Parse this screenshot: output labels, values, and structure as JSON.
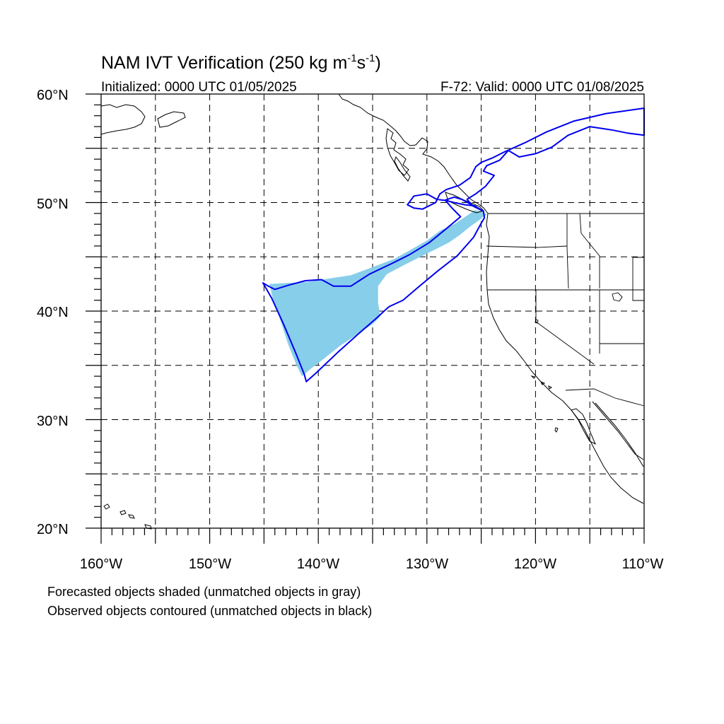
{
  "title": {
    "main": "NAM IVT Verification (250 kg m",
    "exp1": "-1",
    "mid": "s",
    "exp2": "-1",
    "close": ")"
  },
  "subtitle_left": "Initialized: 0000 UTC 01/05/2025",
  "subtitle_right": "F-72: Valid: 0000 UTC 01/08/2025",
  "lat_labels": [
    "60°N",
    "50°N",
    "40°N",
    "30°N",
    "20°N"
  ],
  "lon_labels": [
    "160°W",
    "150°W",
    "140°W",
    "130°W",
    "120°W",
    "110°W"
  ],
  "caption_line1": "Forecasted objects shaded (unmatched objects in gray)",
  "caption_line2": "Observed objects contoured (unmatched objects in black)",
  "map_data": {
    "extent": {
      "lon": [
        -160,
        -110
      ],
      "lat": [
        20,
        60
      ]
    },
    "grid_spacing_deg": 5,
    "colors": {
      "forecast_fill": "#87ceea",
      "observed_contour": "#0000ee",
      "coastline": "#000000",
      "grid": "#000000"
    },
    "forecast_object": [
      [
        -144.5,
        42.5
      ],
      [
        -141,
        42.7
      ],
      [
        -137,
        43.3
      ],
      [
        -133,
        44.8
      ],
      [
        -130,
        46.5
      ],
      [
        -128.8,
        47.4
      ],
      [
        -127.5,
        48.0
      ],
      [
        -126.3,
        48.8
      ],
      [
        -125.6,
        49.3
      ],
      [
        -124.9,
        49.2
      ],
      [
        -124.5,
        48.9
      ],
      [
        -125.3,
        48.3
      ],
      [
        -126.0,
        47.8
      ],
      [
        -127.0,
        47.0
      ],
      [
        -128.0,
        46.3
      ],
      [
        -130.0,
        45.3
      ],
      [
        -132.0,
        44.3
      ],
      [
        -133.7,
        43.4
      ],
      [
        -134.5,
        42.3
      ],
      [
        -134.5,
        40.8
      ],
      [
        -134.3,
        39.5
      ],
      [
        -135.0,
        38.8
      ],
      [
        -136.5,
        37.8
      ],
      [
        -138.0,
        36.8
      ],
      [
        -139.5,
        35.6
      ],
      [
        -140.8,
        34.6
      ],
      [
        -141.5,
        34.0
      ],
      [
        -142.0,
        35.0
      ],
      [
        -142.8,
        37.0
      ],
      [
        -143.6,
        39.5
      ],
      [
        -144.2,
        41.2
      ],
      [
        -144.5,
        42.5
      ]
    ],
    "observed_contour": [
      [
        -145.1,
        42.6
      ],
      [
        -144.3,
        41.2
      ],
      [
        -143.2,
        38.8
      ],
      [
        -142.1,
        36.2
      ],
      [
        -141.3,
        34.2
      ],
      [
        -141.1,
        33.5
      ],
      [
        -140.2,
        34.3
      ],
      [
        -138.2,
        36.2
      ],
      [
        -136.2,
        38.0
      ],
      [
        -134.7,
        39.3
      ],
      [
        -133.5,
        40.4
      ],
      [
        -132.2,
        41.0
      ],
      [
        -130.8,
        42.2
      ],
      [
        -129.0,
        43.7
      ],
      [
        -127.2,
        45.1
      ],
      [
        -125.7,
        46.8
      ],
      [
        -125.0,
        48.1
      ],
      [
        -124.7,
        48.6
      ],
      [
        -124.8,
        49.2
      ],
      [
        -125.6,
        49.7
      ],
      [
        -126.5,
        49.8
      ],
      [
        -127.5,
        50.0
      ],
      [
        -128.3,
        50.2
      ],
      [
        -127.6,
        49.4
      ],
      [
        -126.9,
        48.7
      ],
      [
        -128.2,
        47.6
      ],
      [
        -129.8,
        46.3
      ],
      [
        -131.6,
        45.2
      ],
      [
        -133.2,
        44.4
      ],
      [
        -135.3,
        43.4
      ],
      [
        -137.0,
        42.3
      ],
      [
        -138.6,
        42.3
      ],
      [
        -139.7,
        42.9
      ],
      [
        -141.2,
        42.8
      ],
      [
        -142.7,
        42.4
      ],
      [
        -144.0,
        42.0
      ],
      [
        -144.6,
        42.3
      ],
      [
        -145.1,
        42.6
      ]
    ],
    "observed_contour_upper": [
      [
        -125.0,
        49.3
      ],
      [
        -126.8,
        50.3
      ],
      [
        -127.5,
        50.5
      ],
      [
        -128.4,
        50.2
      ],
      [
        -129.1,
        50.3
      ],
      [
        -130.0,
        50.8
      ],
      [
        -131.2,
        50.6
      ],
      [
        -131.8,
        49.8
      ],
      [
        -131.2,
        49.5
      ],
      [
        -130.4,
        49.4
      ],
      [
        -129.2,
        50.0
      ],
      [
        -128.8,
        50.8
      ],
      [
        -128.2,
        51.2
      ],
      [
        -127.0,
        51.6
      ],
      [
        -126.0,
        52.3
      ],
      [
        -125.5,
        53.3
      ],
      [
        -125.0,
        53.7
      ],
      [
        -124.0,
        54.1
      ],
      [
        -122.8,
        54.7
      ],
      [
        -121.0,
        55.5
      ],
      [
        -119.0,
        56.5
      ],
      [
        -116.5,
        57.5
      ],
      [
        -113.5,
        58.2
      ],
      [
        -110.0,
        58.7
      ],
      [
        -110.0,
        56.2
      ],
      [
        -111.5,
        56.4
      ],
      [
        -113.0,
        56.7
      ],
      [
        -115.0,
        57.0
      ],
      [
        -117.0,
        56.2
      ],
      [
        -118.5,
        55.1
      ],
      [
        -120.0,
        54.5
      ],
      [
        -121.5,
        54.2
      ],
      [
        -122.5,
        54.8
      ],
      [
        -123.3,
        53.9
      ],
      [
        -124.5,
        53.4
      ],
      [
        -124.8,
        52.9
      ],
      [
        -123.8,
        52.5
      ],
      [
        -124.6,
        51.5
      ],
      [
        -125.5,
        50.8
      ],
      [
        -126.3,
        50.3
      ],
      [
        -125.8,
        49.7
      ],
      [
        -125.0,
        49.3
      ]
    ]
  }
}
